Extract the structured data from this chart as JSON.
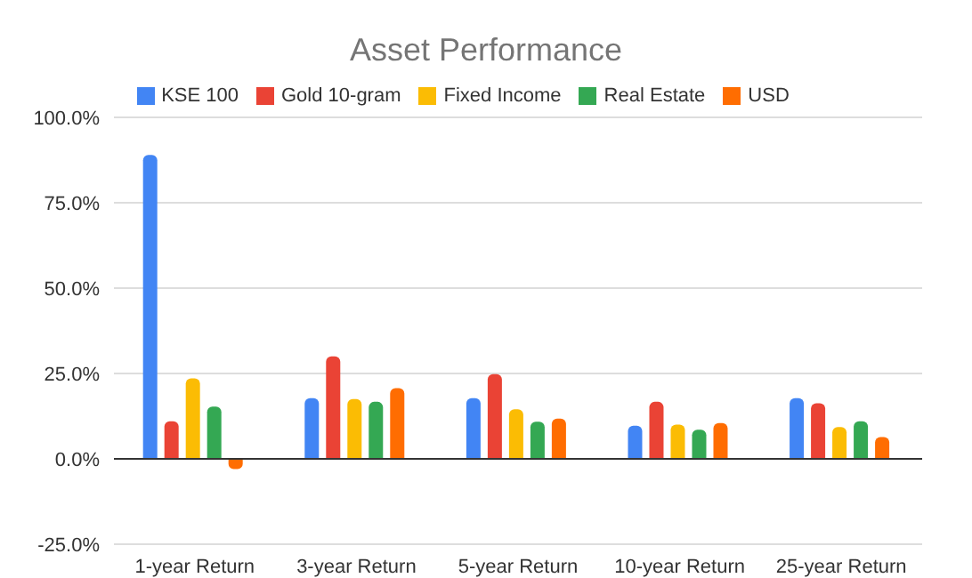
{
  "chart_data": {
    "type": "bar",
    "title": "Asset Performance",
    "categories": [
      "1-year Return",
      "3-year Return",
      "5-year Return",
      "10-year Return",
      "25-year Return"
    ],
    "series": [
      {
        "name": "KSE 100",
        "color": "#4285f4",
        "values": [
          89,
          17.8,
          17.8,
          9.7,
          17.8
        ]
      },
      {
        "name": "Gold 10-gram",
        "color": "#ea4335",
        "values": [
          11,
          30,
          24.8,
          16.7,
          16.3
        ]
      },
      {
        "name": "Fixed Income",
        "color": "#fbbc04",
        "values": [
          23.6,
          17.5,
          14.5,
          10,
          9.3
        ]
      },
      {
        "name": "Real Estate",
        "color": "#34a853",
        "values": [
          15.3,
          16.7,
          10.9,
          8.5,
          11
        ]
      },
      {
        "name": "USD",
        "color": "#ff6d01",
        "values": [
          -3,
          20.7,
          11.8,
          10.5,
          6.4
        ]
      }
    ],
    "ylim": [
      -25,
      100
    ],
    "yticks": [
      {
        "value": -25,
        "label": "-25.0%"
      },
      {
        "value": 0,
        "label": "0.0%"
      },
      {
        "value": 25,
        "label": "25.0%"
      },
      {
        "value": 50,
        "label": "50.0%"
      },
      {
        "value": 75,
        "label": "75.0%"
      },
      {
        "value": 100,
        "label": "100.0%"
      }
    ],
    "grid": "y",
    "legend": "top"
  }
}
